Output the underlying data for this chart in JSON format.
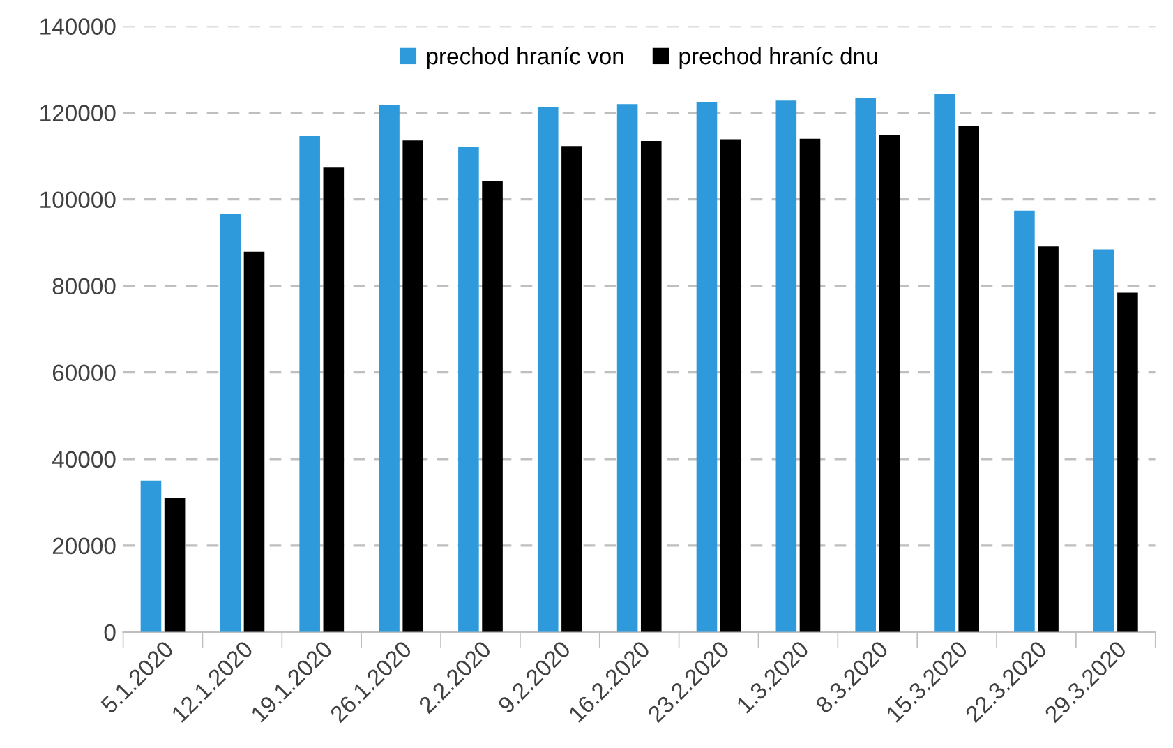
{
  "chart_data": {
    "type": "bar",
    "categories": [
      "5.1.2020",
      "12.1.2020",
      "19.1.2020",
      "26.1.2020",
      "2.2.2020",
      "9.2.2020",
      "16.2.2020",
      "23.2.2020",
      "1.3.2020",
      "8.3.2020",
      "15.3.2020",
      "22.3.2020",
      "29.3.2020"
    ],
    "series": [
      {
        "name": "prechod hraníc von",
        "color": "#2e9adc",
        "values": [
          35000,
          96600,
          114600,
          121700,
          112100,
          121200,
          122000,
          122500,
          122800,
          123300,
          124300,
          97400,
          88400
        ]
      },
      {
        "name": "prechod hraníc dnu",
        "color": "#000000",
        "values": [
          31100,
          87900,
          107300,
          113600,
          104300,
          112300,
          113500,
          113900,
          114000,
          114900,
          116900,
          89100,
          78400
        ]
      }
    ],
    "ylim": [
      0,
      140000
    ],
    "yticks": [
      0,
      20000,
      40000,
      60000,
      80000,
      100000,
      120000,
      140000
    ],
    "grid": "y",
    "legend": "top"
  }
}
